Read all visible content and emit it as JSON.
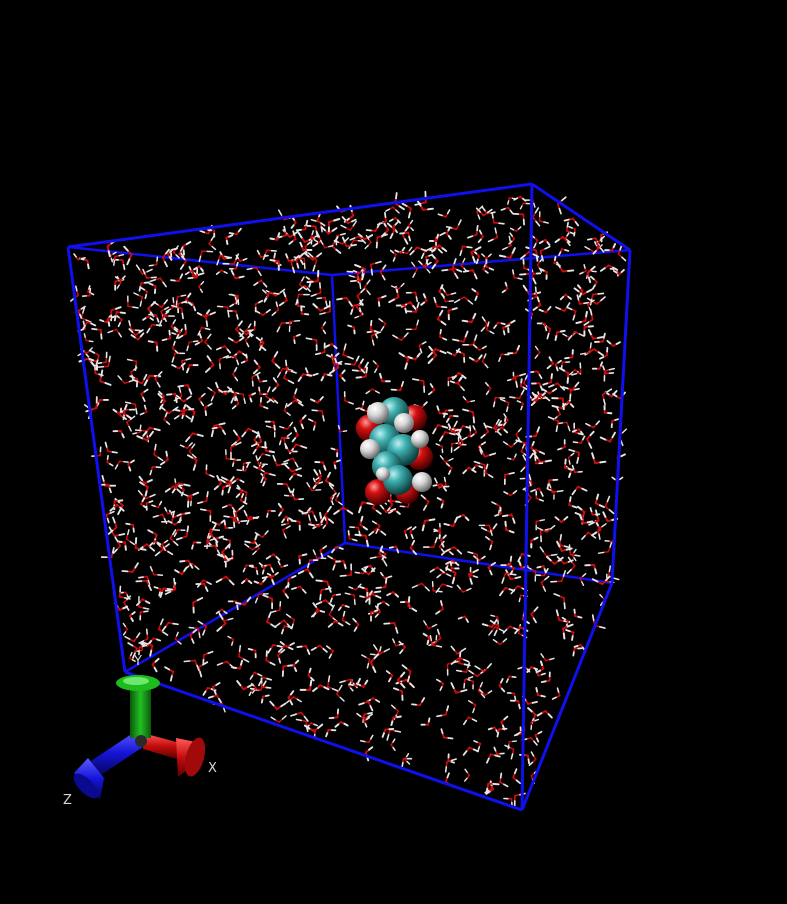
{
  "scene": {
    "background": "#000000",
    "box_color": "#1010ee",
    "water_oxygen_color": "#c81010",
    "water_hydrogen_color": "#e6e6e6",
    "solute_atoms": {
      "carbon": "#3aa6a6",
      "oxygen": "#d01010",
      "hydrogen": "#e8e8e8"
    }
  },
  "axes": {
    "x_label": "X",
    "y_label": "Y",
    "z_label": "Z",
    "x_color": "#cc1010",
    "y_color": "#10b010",
    "z_color": "#1010dd"
  }
}
